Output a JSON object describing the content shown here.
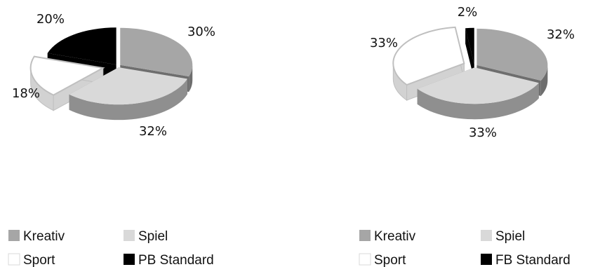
{
  "chart_data": [
    {
      "type": "pie",
      "title": "",
      "categories": [
        "Kreativ",
        "Spiel",
        "Sport",
        "PB Standard"
      ],
      "values": [
        30,
        32,
        18,
        20
      ],
      "labels": [
        "30%",
        "32%",
        "18%",
        "20%"
      ],
      "colors": [
        "#a6a6a6",
        "#d9d9d9",
        "#ffffff",
        "#000000"
      ],
      "exploded": "Sport",
      "style": "3d-exploded",
      "legend": "bottom"
    },
    {
      "type": "pie",
      "title": "",
      "categories": [
        "Kreativ",
        "Spiel",
        "Sport",
        "FB Standard"
      ],
      "values": [
        32,
        33,
        33,
        2
      ],
      "labels": [
        "32%",
        "33%",
        "33%",
        "2%"
      ],
      "colors": [
        "#a6a6a6",
        "#d9d9d9",
        "#ffffff",
        "#000000"
      ],
      "exploded": "Sport",
      "style": "3d-exploded",
      "legend": "bottom"
    }
  ]
}
